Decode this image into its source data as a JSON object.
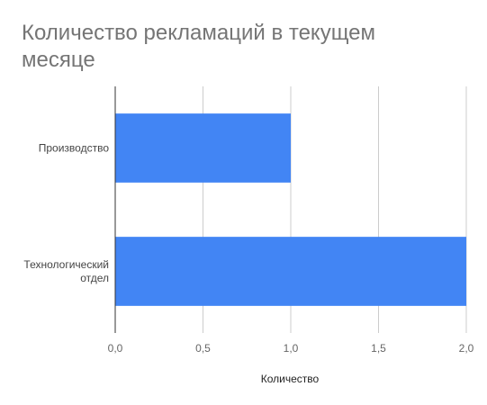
{
  "chart_data": {
    "type": "bar",
    "orientation": "horizontal",
    "title": "Количество рекламаций в текущем месяце",
    "xlabel": "Количество",
    "ylabel": "",
    "categories": [
      [
        "Производство"
      ],
      [
        "Технологический",
        "отдел"
      ]
    ],
    "values": [
      1.0,
      2.0
    ],
    "xlim": [
      0,
      2.0
    ],
    "xticks": [
      "0,0",
      "0,5",
      "1,0",
      "1,5",
      "2,0"
    ],
    "grid": true,
    "legend": "none",
    "bar_color": "#4285f4"
  }
}
